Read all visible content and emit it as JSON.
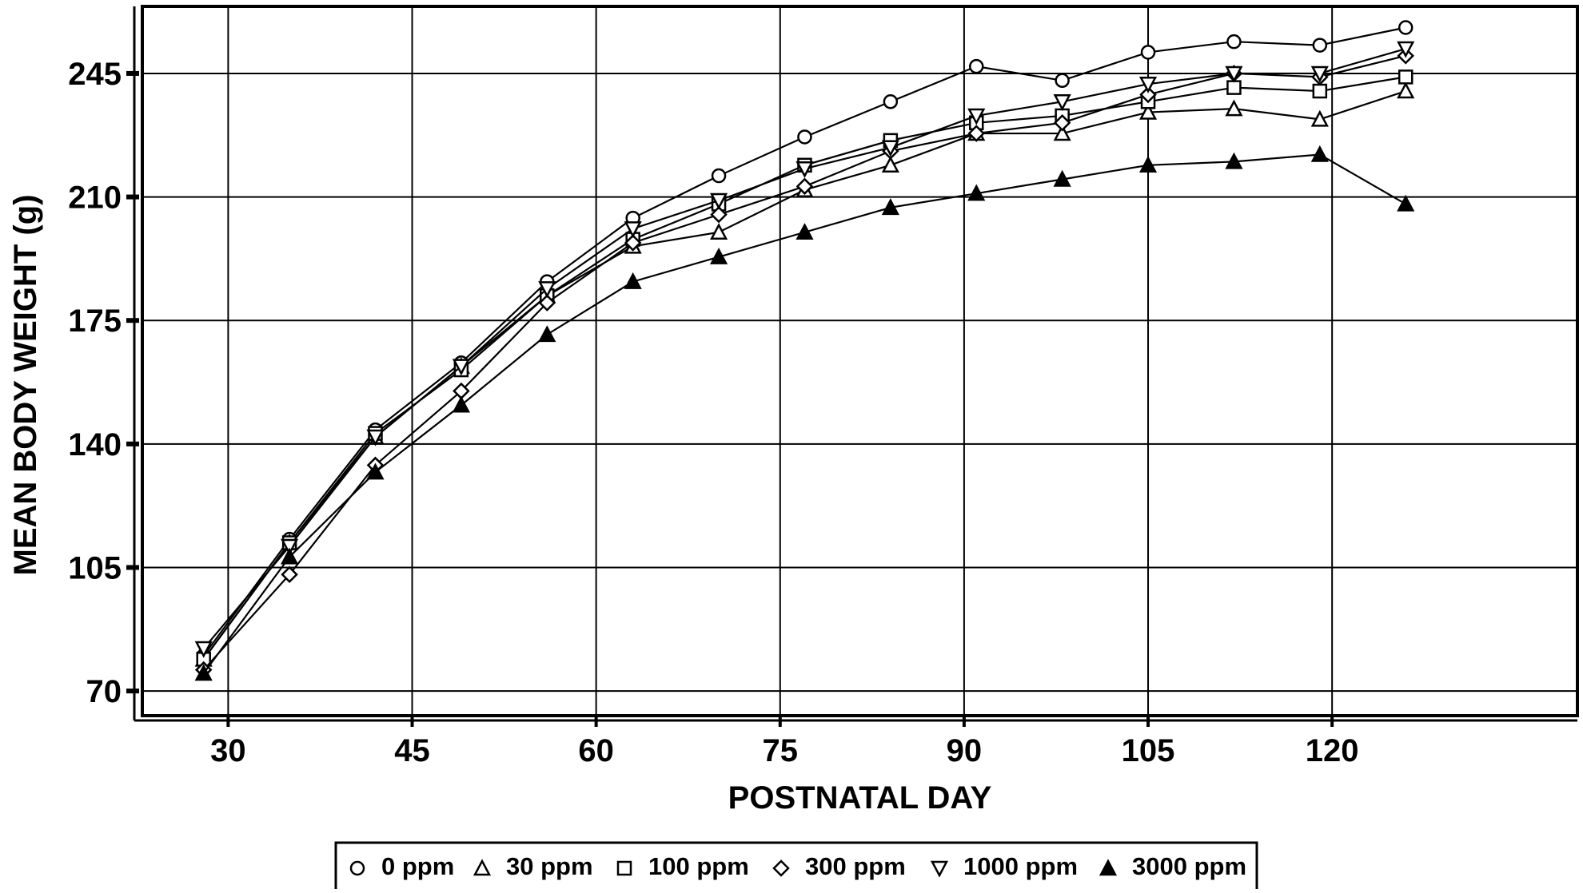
{
  "chart_data": {
    "type": "line",
    "title": "",
    "xlabel": "POSTNATAL DAY",
    "ylabel": "MEAN BODY WEIGHT (g)",
    "xlim": [
      23,
      140
    ],
    "ylim": [
      63,
      264
    ],
    "xticks": [
      30,
      45,
      60,
      75,
      90,
      105,
      120
    ],
    "yticks": [
      70,
      105,
      140,
      175,
      210,
      245
    ],
    "grid": true,
    "legend_position": "bottom",
    "x": [
      28,
      35,
      42,
      49,
      56,
      63,
      70,
      77,
      84,
      91,
      98,
      105,
      112,
      119,
      126
    ],
    "series": [
      {
        "name": "0 ppm",
        "marker": "circle",
        "values": [
          80,
          113,
          144,
          163,
          186,
          204,
          216,
          227,
          237,
          247,
          243,
          251,
          254,
          253,
          258
        ]
      },
      {
        "name": "30 ppm",
        "marker": "triangle-up",
        "values": [
          79,
          112,
          142,
          162,
          182,
          196,
          200,
          212,
          219,
          228,
          228,
          234,
          235,
          232,
          240
        ]
      },
      {
        "name": "100 ppm",
        "marker": "square",
        "values": [
          79,
          112,
          143,
          161,
          182,
          198,
          208,
          219,
          226,
          231,
          233,
          237,
          241,
          240,
          244
        ]
      },
      {
        "name": "300 ppm",
        "marker": "diamond",
        "values": [
          76,
          103,
          134,
          155,
          180,
          197,
          205,
          213,
          223,
          228,
          231,
          239,
          245,
          244,
          250
        ]
      },
      {
        "name": "1000 ppm",
        "marker": "triangle-down",
        "values": [
          82,
          111,
          142,
          162,
          184,
          201,
          209,
          218,
          224,
          233,
          237,
          242,
          245,
          245,
          252
        ]
      },
      {
        "name": "3000 ppm",
        "marker": "triangle-up-filled",
        "values": [
          75,
          108,
          132,
          151,
          171,
          186,
          193,
          200,
          207,
          211,
          215,
          219,
          220,
          222,
          208
        ]
      }
    ]
  }
}
